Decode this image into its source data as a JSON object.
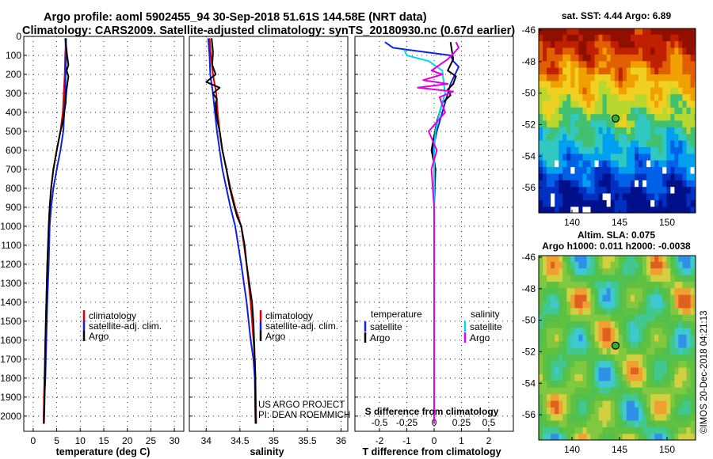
{
  "figure": {
    "title_line1": "Argo profile: aoml 5902455_94 30-Sep-2018 51.61S 144.58E (NRT data)",
    "title_line2": "Climatology: CARS2009. Satellite-adjusted climatology: synTS_20180930.nc (0.67d earlier)",
    "credit_line1": "US ARGO PROJECT",
    "credit_line2": "PI: DEAN ROEMMICH",
    "watermark": "©IMOS 20-Dec-2018 04:21:13"
  },
  "colors": {
    "climatology": "#e00000",
    "satellite": "#1020e0",
    "argo": "#000000",
    "s_satellite": "#00d8e8",
    "s_argo": "#e000e0"
  },
  "chart_data": [
    {
      "id": "temperature",
      "type": "line",
      "xlabel": "temperature (deg C)",
      "ylabel": "",
      "xlim": [
        -2,
        32
      ],
      "ylim": [
        2080,
        0
      ],
      "xticks": [
        0,
        5,
        10,
        15,
        20,
        25,
        30
      ],
      "yticks": [
        0,
        100,
        200,
        300,
        400,
        500,
        600,
        700,
        800,
        900,
        1000,
        1100,
        1200,
        1300,
        1400,
        1500,
        1600,
        1700,
        1800,
        1900,
        2000
      ],
      "grid": true,
      "legend": {
        "position": "lower-right",
        "entries": [
          "climatology",
          "satellite-adj. clim.",
          "Argo"
        ]
      },
      "series": [
        {
          "name": "climatology",
          "color_key": "climatology",
          "x": [
            6.8,
            6.9,
            6.8,
            6.7,
            6.5,
            6.3,
            5.8,
            5.0,
            4.3,
            3.8,
            3.5,
            3.3,
            3.0,
            2.8,
            2.6,
            2.5,
            2.4,
            2.3,
            2.2,
            2.2
          ],
          "y": [
            10,
            50,
            100,
            200,
            300,
            400,
            500,
            600,
            700,
            800,
            900,
            1000,
            1200,
            1400,
            1600,
            1700,
            1800,
            1900,
            2000,
            2040
          ]
        },
        {
          "name": "satellite-adj. clim.",
          "color_key": "satellite",
          "x": [
            7.0,
            6.9,
            7.0,
            7.0,
            6.9,
            6.8,
            6.6,
            6.4,
            5.8,
            5.0,
            4.3,
            3.8,
            3.5,
            3.3,
            3.0,
            2.8,
            2.6,
            2.4,
            2.3,
            2.3
          ],
          "y": [
            10,
            50,
            60,
            100,
            200,
            300,
            400,
            500,
            600,
            700,
            800,
            900,
            1000,
            1200,
            1400,
            1600,
            1800,
            1900,
            2000,
            2040
          ]
        },
        {
          "name": "Argo",
          "color_key": "argo",
          "x": [
            6.9,
            7.0,
            7.2,
            7.5,
            7.1,
            7.5,
            7.3,
            7.0,
            6.9,
            6.6,
            6.3,
            5.8,
            5.0,
            4.3,
            3.8,
            3.5,
            3.3,
            3.0,
            2.8,
            2.6,
            2.5,
            2.4,
            2.3
          ],
          "y": [
            10,
            50,
            100,
            150,
            180,
            210,
            240,
            300,
            350,
            400,
            450,
            500,
            600,
            700,
            800,
            900,
            1000,
            1200,
            1400,
            1600,
            1800,
            1950,
            2040
          ]
        }
      ]
    },
    {
      "id": "salinity",
      "type": "line",
      "xlabel": "salinity",
      "ylabel": "",
      "xlim": [
        33.75,
        36.1
      ],
      "ylim": [
        2080,
        0
      ],
      "xticks": [
        34,
        34.5,
        35,
        35.5,
        36
      ],
      "yticks": [
        0,
        100,
        200,
        300,
        400,
        500,
        600,
        700,
        800,
        900,
        1000,
        1100,
        1200,
        1300,
        1400,
        1500,
        1600,
        1700,
        1800,
        1900,
        2000
      ],
      "grid": true,
      "legend": {
        "position": "lower-right",
        "entries": [
          "climatology",
          "satellite-adj. clim.",
          "Argo"
        ]
      },
      "series": [
        {
          "name": "climatology",
          "color_key": "climatology",
          "x": [
            34.05,
            34.06,
            34.07,
            34.1,
            34.15,
            34.17,
            34.2,
            34.24,
            34.3,
            34.36,
            34.43,
            34.52,
            34.6,
            34.66,
            34.7,
            34.72,
            34.73,
            34.74,
            34.74
          ],
          "y": [
            10,
            50,
            100,
            200,
            300,
            400,
            500,
            600,
            700,
            800,
            900,
            1000,
            1200,
            1400,
            1600,
            1700,
            1800,
            2000,
            2040
          ]
        },
        {
          "name": "satellite-adj. clim.",
          "color_key": "satellite",
          "x": [
            34.03,
            34.05,
            34.06,
            34.1,
            34.13,
            34.16,
            34.2,
            34.24,
            34.3,
            34.36,
            34.43,
            34.52,
            34.6,
            34.66,
            34.7,
            34.72,
            34.73,
            34.73
          ],
          "y": [
            10,
            100,
            200,
            300,
            400,
            500,
            600,
            700,
            800,
            900,
            1000,
            1200,
            1400,
            1600,
            1700,
            1800,
            2000,
            2040
          ]
        },
        {
          "name": "Argo",
          "color_key": "argo",
          "x": [
            34.08,
            34.1,
            34.09,
            34.14,
            34.0,
            34.2,
            34.1,
            34.16,
            34.14,
            34.15,
            34.17,
            34.2,
            34.24,
            34.3,
            34.35,
            34.42,
            34.46,
            34.52,
            34.57,
            34.6,
            34.64,
            34.68,
            34.7,
            34.72,
            34.73,
            34.73,
            34.74
          ],
          "y": [
            10,
            80,
            150,
            200,
            240,
            270,
            300,
            330,
            350,
            400,
            450,
            500,
            600,
            700,
            800,
            900,
            950,
            1000,
            1100,
            1200,
            1300,
            1400,
            1500,
            1700,
            1800,
            2000,
            2040
          ]
        }
      ]
    },
    {
      "id": "difference",
      "type": "line",
      "xlabel": "T difference from climatology",
      "xlabel_top": "S difference from climatology",
      "ylabel": "",
      "xlim": [
        -2.9,
        2.9
      ],
      "ylim": [
        2080,
        0
      ],
      "xticks": [
        -2,
        -1,
        0,
        1,
        2
      ],
      "xticks_top_labels": [
        "-0.5",
        "-0.25",
        "0",
        "0.25",
        "0.5"
      ],
      "yticks": [
        0,
        100,
        200,
        300,
        400,
        500,
        600,
        700,
        800,
        900,
        1000,
        1100,
        1200,
        1300,
        1400,
        1500,
        1600,
        1700,
        1800,
        1900,
        2000
      ],
      "grid": true,
      "legend": {
        "position": "lower",
        "temperature_header": "temperature",
        "salinity_header": "salinity",
        "entries": [
          "satellite",
          "Argo"
        ]
      },
      "series": [
        {
          "name": "temperature satellite",
          "color_key": "satellite",
          "x": [
            -1.8,
            -1.5,
            0.6,
            0.7,
            0.9,
            0.6,
            0.3,
            0.1,
            -0.05,
            0.05,
            0.0,
            0.0,
            0.0,
            0.0,
            0.0
          ],
          "y": [
            30,
            60,
            100,
            130,
            160,
            250,
            400,
            500,
            600,
            700,
            900,
            1200,
            1500,
            1800,
            2040
          ]
        },
        {
          "name": "temperature Argo",
          "color_key": "argo",
          "x": [
            0.6,
            0.7,
            0.5,
            0.8,
            0.7,
            0.5,
            0.6,
            0.3,
            0.1,
            -0.1,
            0.05,
            0.0,
            0.0,
            0.0,
            0.0,
            0.0
          ],
          "y": [
            30,
            120,
            180,
            210,
            250,
            280,
            310,
            350,
            450,
            600,
            700,
            800,
            1000,
            1300,
            1800,
            2040
          ]
        },
        {
          "name": "salinity satellite",
          "color_key": "s_satellite",
          "x": [
            -1.1,
            -1.0,
            -0.2,
            0.3,
            0.4,
            0.2,
            0.05,
            0.0,
            0.0,
            0.0,
            0.0,
            0.0,
            0.0
          ],
          "y": [
            70,
            100,
            130,
            180,
            300,
            400,
            500,
            600,
            800,
            1100,
            1500,
            1800,
            2040
          ]
        },
        {
          "name": "salinity Argo",
          "color_key": "s_argo",
          "x": [
            0.8,
            0.9,
            0.5,
            -0.1,
            0.3,
            -0.4,
            0.5,
            -0.6,
            0.7,
            0.2,
            0.4,
            -0.2,
            0.1,
            -0.1,
            0.0,
            0.0,
            0.0,
            0.0
          ],
          "y": [
            30,
            60,
            120,
            180,
            200,
            230,
            250,
            270,
            290,
            320,
            400,
            500,
            600,
            700,
            900,
            1300,
            1800,
            2040
          ]
        }
      ]
    },
    {
      "id": "sst-map",
      "type": "heatmap",
      "title": "sat. SST: 4.44 Argo: 6.89",
      "xlim": [
        136.5,
        153
      ],
      "ylim": [
        -57.6,
        -45.9
      ],
      "xticks": [
        140,
        145,
        150
      ],
      "yticks": [
        -46,
        -48,
        -50,
        -52,
        -54,
        -56
      ],
      "marker": {
        "lon": 144.58,
        "lat": -51.61
      }
    },
    {
      "id": "sla-map",
      "type": "heatmap",
      "title": "Altim. SLA: 0.075",
      "subtitle": "Argo h1000: 0.011 h2000: -0.0038",
      "xlim": [
        136.5,
        153
      ],
      "ylim": [
        -57.6,
        -45.9
      ],
      "xticks": [
        140,
        145,
        150
      ],
      "yticks": [
        -46,
        -48,
        -50,
        -52,
        -54,
        -56
      ],
      "marker": {
        "lon": 144.58,
        "lat": -51.61
      }
    }
  ]
}
